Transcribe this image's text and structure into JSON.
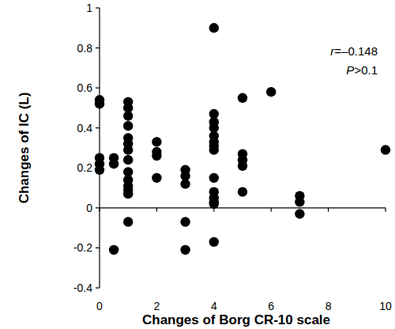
{
  "chart_data": {
    "type": "scatter",
    "x_label": "Changes of Borg CR-10 scale",
    "y_label": "Changes of IC (L)",
    "annotations": [
      "r=–0.148",
      "P>0.1"
    ],
    "x": [
      0,
      0,
      0,
      0,
      0,
      0.5,
      0.5,
      0.5,
      1,
      1,
      1,
      1,
      1,
      1,
      1,
      1,
      1,
      1,
      1,
      1,
      1,
      1,
      2,
      2,
      2,
      2,
      3,
      3,
      3,
      3,
      3,
      4,
      4,
      4,
      4,
      4,
      4,
      4,
      4,
      4,
      4,
      4,
      4,
      4,
      4,
      5,
      5,
      5,
      5,
      5,
      6,
      7,
      7,
      7,
      10
    ],
    "values": [
      0.54,
      0.52,
      0.25,
      0.22,
      0.19,
      -0.21,
      0.25,
      0.22,
      0.53,
      0.5,
      0.46,
      0.41,
      0.35,
      0.32,
      0.29,
      0.24,
      0.18,
      0.14,
      0.11,
      0.09,
      0.07,
      -0.07,
      0.33,
      0.28,
      0.26,
      0.15,
      0.19,
      0.16,
      0.12,
      -0.07,
      -0.21,
      0.9,
      0.47,
      0.43,
      0.4,
      0.36,
      0.33,
      0.31,
      0.29,
      0.15,
      0.08,
      0.05,
      0.03,
      0.02,
      -0.17,
      0.55,
      0.27,
      0.24,
      0.21,
      0.08,
      0.58,
      0.06,
      0.03,
      -0.03,
      0.29
    ],
    "color": "#000000",
    "marker": "circle",
    "xlim": [
      0,
      10
    ],
    "xticks": [
      0,
      2,
      4,
      6,
      8,
      10
    ],
    "ylim": [
      -0.4,
      1
    ],
    "yticks": [
      -0.4,
      -0.2,
      0,
      0.2,
      0.4,
      0.6,
      0.8,
      1
    ],
    "grid": false
  }
}
